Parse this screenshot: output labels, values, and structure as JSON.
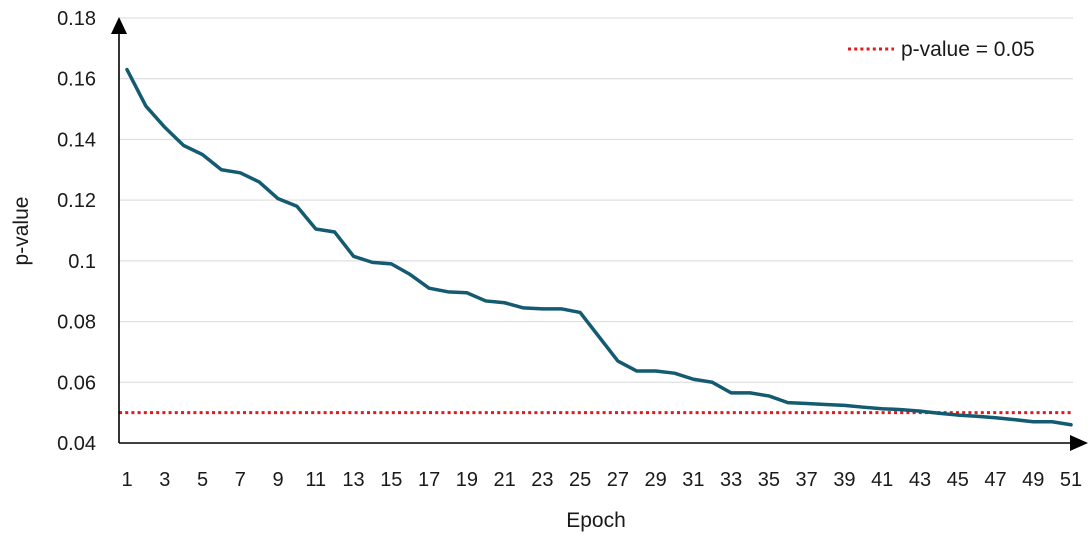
{
  "chart_data": {
    "type": "line",
    "xlabel": "Epoch",
    "ylabel": "p-value",
    "ylim": [
      0.04,
      0.18
    ],
    "yticks": [
      "0.04",
      "0.06",
      "0.08",
      "0.1",
      "0.12",
      "0.14",
      "0.16",
      "0.18"
    ],
    "x": [
      1,
      2,
      3,
      4,
      5,
      6,
      7,
      8,
      9,
      10,
      11,
      12,
      13,
      14,
      15,
      16,
      17,
      18,
      19,
      20,
      21,
      22,
      23,
      24,
      25,
      26,
      27,
      28,
      29,
      30,
      31,
      32,
      33,
      34,
      35,
      36,
      37,
      38,
      39,
      40,
      41,
      42,
      43,
      44,
      45,
      46,
      47,
      48,
      49,
      50,
      51
    ],
    "xtick_labels": [
      "1",
      "3",
      "5",
      "7",
      "9",
      "11",
      "13",
      "15",
      "17",
      "19",
      "21",
      "23",
      "25",
      "27",
      "29",
      "31",
      "33",
      "35",
      "37",
      "39",
      "41",
      "43",
      "45",
      "47",
      "49",
      "51"
    ],
    "grid": "horizontal",
    "legend_position": "top-right",
    "series": [
      {
        "values": [
          0.163,
          0.151,
          0.144,
          0.138,
          0.135,
          0.13,
          0.129,
          0.126,
          0.1205,
          0.118,
          0.1105,
          0.1095,
          0.1015,
          0.0995,
          0.099,
          0.0955,
          0.091,
          0.0898,
          0.0895,
          0.0868,
          0.0862,
          0.0845,
          0.0842,
          0.0842,
          0.083,
          0.075,
          0.067,
          0.0637,
          0.0637,
          0.063,
          0.061,
          0.06,
          0.0565,
          0.0565,
          0.0555,
          0.0533,
          0.053,
          0.0527,
          0.0524,
          0.0518,
          0.0513,
          0.051,
          0.0505,
          0.0498,
          0.0492,
          0.0488,
          0.0483,
          0.0477,
          0.047,
          0.047,
          0.046
        ],
        "color": "#145a70",
        "style": "solid"
      },
      {
        "name": "p-value = 0.05",
        "constant": 0.05,
        "color": "#e31a1c",
        "style": "dotted"
      }
    ]
  }
}
